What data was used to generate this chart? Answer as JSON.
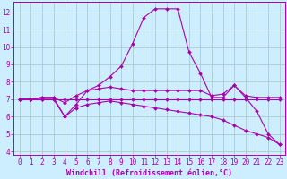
{
  "bg_color": "#cceeff",
  "grid_color": "#aacccc",
  "line_color": "#aa00aa",
  "spine_color": "#aa00aa",
  "xlabel": "Windchill (Refroidissement éolien,°C)",
  "xlim": [
    -0.5,
    23.5
  ],
  "ylim": [
    3.8,
    12.6
  ],
  "yticks": [
    4,
    5,
    6,
    7,
    8,
    9,
    10,
    11,
    12
  ],
  "xticks": [
    0,
    1,
    2,
    3,
    4,
    5,
    6,
    7,
    8,
    9,
    10,
    11,
    12,
    13,
    14,
    15,
    16,
    17,
    18,
    19,
    20,
    21,
    22,
    23
  ],
  "series": [
    [
      7.0,
      7.0,
      7.1,
      7.1,
      6.0,
      6.7,
      7.5,
      7.8,
      8.3,
      8.9,
      10.2,
      11.7,
      12.2,
      12.2,
      12.2,
      9.7,
      8.5,
      7.1,
      7.1,
      7.8,
      7.1,
      6.3,
      5.0,
      4.4
    ],
    [
      7.0,
      7.0,
      7.1,
      7.1,
      6.8,
      7.2,
      7.5,
      7.6,
      7.7,
      7.6,
      7.5,
      7.5,
      7.5,
      7.5,
      7.5,
      7.5,
      7.5,
      7.2,
      7.3,
      7.8,
      7.2,
      7.1,
      7.1,
      7.1
    ],
    [
      7.0,
      7.0,
      7.0,
      7.0,
      7.0,
      7.0,
      7.0,
      7.0,
      7.0,
      7.0,
      7.0,
      7.0,
      7.0,
      7.0,
      7.0,
      7.0,
      7.0,
      7.0,
      7.0,
      7.0,
      7.0,
      7.0,
      7.0,
      7.0
    ],
    [
      7.0,
      7.0,
      7.0,
      7.0,
      6.0,
      6.5,
      6.7,
      6.8,
      6.9,
      6.8,
      6.7,
      6.6,
      6.5,
      6.4,
      6.3,
      6.2,
      6.1,
      6.0,
      5.8,
      5.5,
      5.2,
      5.0,
      4.8,
      4.4
    ]
  ],
  "tick_fontsize": 5.5,
  "xlabel_fontsize": 6.0,
  "marker_size": 2.0,
  "linewidth": 0.8
}
